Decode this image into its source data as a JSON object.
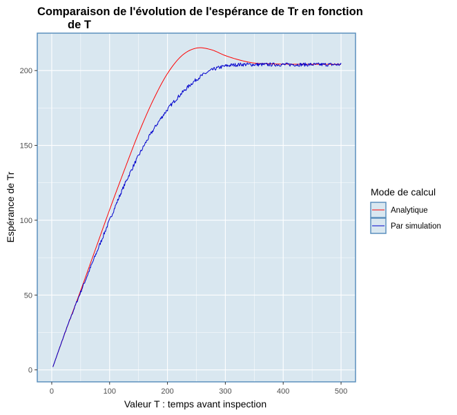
{
  "chart_data": {
    "type": "line",
    "title": [
      "Comparaison de l'évolution de l'espérance de Tr en fonction",
      "de T"
    ],
    "xlabel": "Valeur T : temps avant inspection",
    "ylabel": "Espérance de Tr",
    "xlim": [
      -25,
      525
    ],
    "ylim": [
      -8,
      225
    ],
    "xticks": [
      0,
      100,
      200,
      300,
      400,
      500
    ],
    "yticks": [
      0,
      50,
      100,
      150,
      200
    ],
    "xtick_labels": [
      "0",
      "100",
      "200",
      "300",
      "400",
      "500"
    ],
    "ytick_labels": [
      "0",
      "50",
      "100",
      "150",
      "200"
    ],
    "grid": true,
    "colors": {
      "panel": "#d9e7f0",
      "panel_border": "#5b8fbd",
      "grid": "#ffffff"
    },
    "legend": {
      "title": "Mode de calcul",
      "position": "right",
      "entries": [
        {
          "label": "Analytique",
          "color": "#ff0000"
        },
        {
          "label": "Par simulation",
          "color": "#0000cc"
        }
      ]
    },
    "series": [
      {
        "name": "Analytique",
        "color": "#ff0000",
        "x": [
          2,
          25,
          50,
          75,
          100,
          125,
          150,
          175,
          200,
          225,
          250,
          275,
          300,
          325,
          350,
          375,
          400,
          450,
          500
        ],
        "y": [
          2,
          27,
          53,
          80,
          107,
          133,
          158,
          180,
          198,
          210,
          215,
          214,
          210,
          207,
          205,
          204.5,
          204.3,
          204.2,
          204.2
        ]
      },
      {
        "name": "Par simulation",
        "color": "#0000cc",
        "noise": 1.2,
        "x": [
          2,
          25,
          50,
          75,
          100,
          125,
          150,
          175,
          200,
          225,
          250,
          275,
          300,
          325,
          350,
          375,
          400,
          450,
          500
        ],
        "y": [
          2,
          27,
          52,
          76,
          100,
          123,
          143,
          160,
          174,
          185,
          194,
          200,
          203,
          204,
          204,
          204,
          204,
          204,
          204
        ]
      }
    ]
  }
}
